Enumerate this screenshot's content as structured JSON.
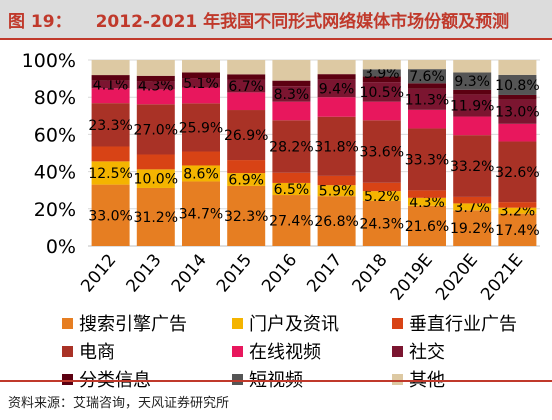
{
  "header": {
    "figure_number": "图 19：",
    "title": "2012-2021 年我国不同形式网络媒体市场份额及预测"
  },
  "source": "资料来源：艾瑞咨询，天风证券研究所",
  "legend_items": [
    {
      "label": "搜索引擎广告",
      "color": "#e67e22"
    },
    {
      "label": "门户及资讯",
      "color": "#f4b400"
    },
    {
      "label": "垂直行业广告",
      "color": "#d84315"
    },
    {
      "label": "电商",
      "color": "#a93226"
    },
    {
      "label": "在线视频",
      "color": "#e8175d"
    },
    {
      "label": "社交",
      "color": "#7b1530"
    },
    {
      "label": "分类信息",
      "color": "#5c0011"
    },
    {
      "label": "短视频",
      "color": "#555555"
    },
    {
      "label": "其他",
      "color": "#ddc9a3"
    }
  ],
  "chart_data": {
    "type": "bar",
    "stacked": true,
    "categories": [
      "2012",
      "2013",
      "2014",
      "2015",
      "2016",
      "2017",
      "2018",
      "2019E",
      "2020E",
      "2021E"
    ],
    "ylim": [
      0,
      100
    ],
    "y_ticks": [
      "0%",
      "20%",
      "40%",
      "60%",
      "80%",
      "100%"
    ],
    "grid": true,
    "legend_position": "bottom",
    "series": [
      {
        "name": "搜索引擎广告",
        "color": "#e67e22",
        "values": [
          33.0,
          31.2,
          34.7,
          32.3,
          27.4,
          26.8,
          24.3,
          21.6,
          19.2,
          17.4
        ],
        "labeled": true
      },
      {
        "name": "门户及资讯",
        "color": "#f4b400",
        "values": [
          12.5,
          10.0,
          8.6,
          6.9,
          6.5,
          5.9,
          5.2,
          4.3,
          3.7,
          3.2
        ],
        "labeled": true
      },
      {
        "name": "垂直行业广告",
        "color": "#d84315",
        "values": [
          8.0,
          8.0,
          7.5,
          7.0,
          5.5,
          5.0,
          4.5,
          4.0,
          3.5,
          3.0
        ],
        "labeled": false
      },
      {
        "name": "电商",
        "color": "#a93226",
        "values": [
          23.3,
          27.0,
          25.9,
          26.9,
          28.2,
          31.8,
          33.6,
          33.3,
          33.2,
          32.6
        ],
        "labeled": true
      },
      {
        "name": "在线视频",
        "color": "#e8175d",
        "values": [
          8.0,
          8.0,
          8.5,
          9.5,
          10.0,
          10.5,
          10.0,
          10.0,
          10.0,
          9.5
        ],
        "labeled": false
      },
      {
        "name": "社交",
        "color": "#7b1530",
        "values": [
          4.1,
          4.3,
          5.1,
          6.7,
          8.3,
          9.4,
          10.5,
          11.3,
          11.9,
          13.0
        ],
        "labeled": true
      },
      {
        "name": "分类信息",
        "color": "#5c0011",
        "values": [
          3.0,
          3.0,
          3.0,
          3.0,
          3.0,
          3.0,
          3.0,
          3.0,
          2.5,
          2.5
        ],
        "labeled": false
      },
      {
        "name": "短视频",
        "color": "#555555",
        "values": [
          0,
          0,
          0,
          0,
          0,
          0,
          3.9,
          7.6,
          9.3,
          10.8
        ],
        "labeled": true
      },
      {
        "name": "其他",
        "color": "#ddc9a3",
        "values": [
          8.1,
          8.5,
          6.7,
          7.7,
          11.1,
          7.6,
          5.0,
          4.9,
          6.7,
          8.0
        ],
        "labeled": false
      }
    ]
  }
}
